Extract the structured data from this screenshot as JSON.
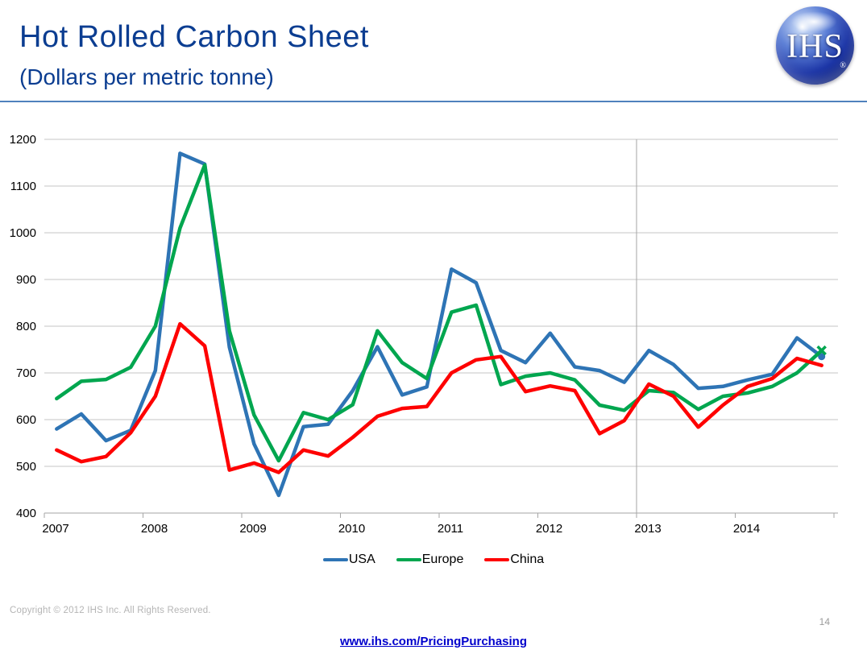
{
  "header": {
    "title": "Hot Rolled Carbon Sheet",
    "subtitle": "(Dollars per metric tonne)",
    "logo_text": "IHS",
    "logo_registered": "®"
  },
  "chart_data": {
    "type": "line",
    "title": "Hot Rolled Carbon Sheet",
    "ylabel": "Dollars per metric tonne",
    "ylim": [
      400,
      1200
    ],
    "ytick_step": 100,
    "y_tick_labels": [
      "400",
      "500",
      "600",
      "700",
      "800",
      "900",
      "1000",
      "1100",
      "1200"
    ],
    "x_tick_labels": [
      "2007",
      "2008",
      "2009",
      "2010",
      "2011",
      "2012",
      "2013",
      "2014"
    ],
    "points_per_year": 4,
    "quarters": [
      "2007 Q1",
      "2007 Q2",
      "2007 Q3",
      "2007 Q4",
      "2008 Q1",
      "2008 Q2",
      "2008 Q3",
      "2008 Q4",
      "2009 Q1",
      "2009 Q2",
      "2009 Q3",
      "2009 Q4",
      "2010 Q1",
      "2010 Q2",
      "2010 Q3",
      "2010 Q4",
      "2011 Q1",
      "2011 Q2",
      "2011 Q3",
      "2011 Q4",
      "2012 Q1",
      "2012 Q2",
      "2012 Q3",
      "2012 Q4",
      "2013 Q1",
      "2013 Q2",
      "2013 Q3",
      "2013 Q4",
      "2014 Q1",
      "2014 Q2",
      "2014 Q3",
      "2014 Q4"
    ],
    "grid": "horizontal",
    "vline_at_year": "2013",
    "legend_position": "bottom-center",
    "gridline_color": "#c6c6c6",
    "axis_color": "#a6a6a6",
    "series": [
      {
        "name": "USA",
        "color": "#2e74b5",
        "end_marker": "dot",
        "values": [
          580,
          612,
          555,
          577,
          705,
          1170,
          1147,
          755,
          548,
          438,
          585,
          590,
          662,
          756,
          653,
          670,
          922,
          893,
          748,
          722,
          785,
          713,
          705,
          680,
          748,
          718,
          667,
          671,
          685,
          697,
          775,
          735
        ]
      },
      {
        "name": "Europe",
        "color": "#00a64f",
        "end_marker": "x",
        "values": [
          645,
          682,
          686,
          712,
          800,
          1010,
          1145,
          790,
          610,
          512,
          615,
          600,
          632,
          790,
          722,
          688,
          830,
          845,
          675,
          693,
          700,
          685,
          631,
          620,
          662,
          658,
          622,
          650,
          657,
          671,
          700,
          748
        ]
      },
      {
        "name": "China",
        "color": "#fe0000",
        "end_marker": "none",
        "values": [
          535,
          510,
          521,
          572,
          650,
          805,
          758,
          492,
          507,
          487,
          535,
          522,
          562,
          607,
          624,
          628,
          700,
          728,
          735,
          660,
          672,
          662,
          570,
          598,
          676,
          650,
          584,
          631,
          671,
          688,
          731,
          716
        ]
      }
    ]
  },
  "footer": {
    "copyright": "Copyright © 2012 IHS Inc. All Rights Reserved.",
    "page_number": "14",
    "link": "www.ihs.com/PricingPurchasing"
  }
}
